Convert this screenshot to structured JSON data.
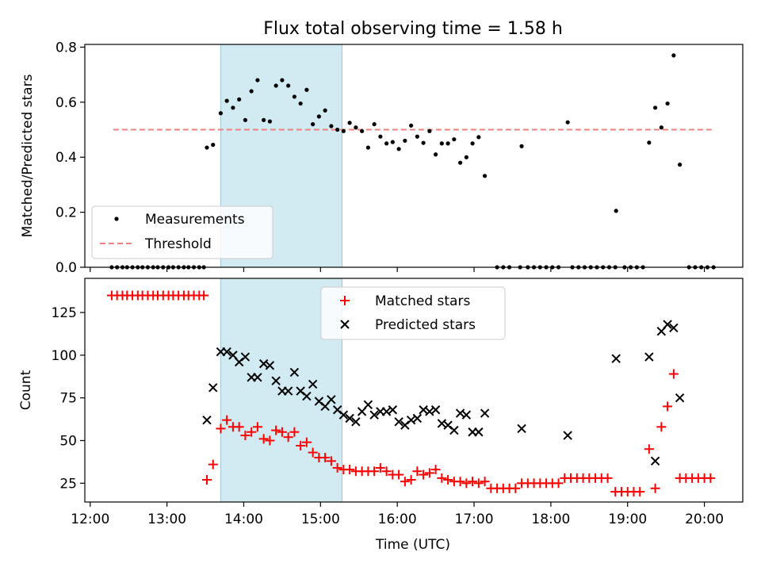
{
  "figure": {
    "title": "Flux total observing time = 1.58 h",
    "xlabel": "Time (UTC)",
    "x_tick_labels": [
      "12:00",
      "13:00",
      "14:00",
      "15:00",
      "16:00",
      "17:00",
      "18:00",
      "19:00",
      "20:00"
    ],
    "x_tick_values": [
      12.0,
      13.0,
      14.0,
      15.0,
      16.0,
      17.0,
      18.0,
      19.0,
      20.0
    ],
    "xlim": [
      11.93,
      20.5
    ],
    "shaded_span": [
      13.7,
      15.28
    ],
    "colors": {
      "span": "#add8e6",
      "span_edge": "#9cc8d6",
      "measurement": "#000000",
      "threshold": "#f08080",
      "matched": "#ff0000",
      "predicted": "#000000"
    }
  },
  "chart_data": [
    {
      "type": "scatter",
      "ylabel": "Matched/Predicted stars",
      "ylim": [
        0,
        0.81
      ],
      "y_ticks": [
        0.0,
        0.2,
        0.4,
        0.6,
        0.8
      ],
      "y_tick_labels": [
        "0.0",
        "0.2",
        "0.4",
        "0.6",
        "0.8"
      ],
      "legend_placement": "lower-left",
      "threshold": {
        "name": "Threshold",
        "value": 0.5,
        "x_range": [
          12.3,
          20.1
        ]
      },
      "series": [
        {
          "name": "Measurements",
          "marker": "dot",
          "points": [
            [
              12.28,
              0
            ],
            [
              12.35,
              0
            ],
            [
              12.42,
              0
            ],
            [
              12.48,
              0
            ],
            [
              12.55,
              0
            ],
            [
              12.62,
              0
            ],
            [
              12.68,
              0
            ],
            [
              12.75,
              0
            ],
            [
              12.82,
              0
            ],
            [
              12.88,
              0
            ],
            [
              12.95,
              0
            ],
            [
              13.02,
              0
            ],
            [
              13.08,
              0
            ],
            [
              13.15,
              0
            ],
            [
              13.22,
              0
            ],
            [
              13.28,
              0
            ],
            [
              13.35,
              0
            ],
            [
              13.42,
              0
            ],
            [
              13.48,
              0
            ],
            [
              13.52,
              0.435
            ],
            [
              13.6,
              0.445
            ],
            [
              13.7,
              0.56
            ],
            [
              13.78,
              0.605
            ],
            [
              13.86,
              0.58
            ],
            [
              13.94,
              0.61
            ],
            [
              14.02,
              0.535
            ],
            [
              14.1,
              0.64
            ],
            [
              14.18,
              0.68
            ],
            [
              14.26,
              0.535
            ],
            [
              14.34,
              0.53
            ],
            [
              14.42,
              0.66
            ],
            [
              14.5,
              0.68
            ],
            [
              14.58,
              0.66
            ],
            [
              14.66,
              0.62
            ],
            [
              14.74,
              0.595
            ],
            [
              14.82,
              0.645
            ],
            [
              14.9,
              0.52
            ],
            [
              14.98,
              0.548
            ],
            [
              15.06,
              0.57
            ],
            [
              15.14,
              0.513
            ],
            [
              15.22,
              0.5
            ],
            [
              15.3,
              0.495
            ],
            [
              15.38,
              0.525
            ],
            [
              15.46,
              0.508
            ],
            [
              15.54,
              0.495
            ],
            [
              15.62,
              0.435
            ],
            [
              15.7,
              0.52
            ],
            [
              15.78,
              0.475
            ],
            [
              15.86,
              0.45
            ],
            [
              15.94,
              0.455
            ],
            [
              16.02,
              0.43
            ],
            [
              16.1,
              0.46
            ],
            [
              16.18,
              0.515
            ],
            [
              16.26,
              0.475
            ],
            [
              16.34,
              0.452
            ],
            [
              16.42,
              0.495
            ],
            [
              16.5,
              0.41
            ],
            [
              16.58,
              0.45
            ],
            [
              16.66,
              0.45
            ],
            [
              16.74,
              0.465
            ],
            [
              16.82,
              0.38
            ],
            [
              16.9,
              0.4
            ],
            [
              16.98,
              0.45
            ],
            [
              17.06,
              0.473
            ],
            [
              17.14,
              0.332
            ],
            [
              17.62,
              0.44
            ],
            [
              18.22,
              0.527
            ],
            [
              18.85,
              0.205
            ],
            [
              19.28,
              0.453
            ],
            [
              19.36,
              0.58
            ],
            [
              19.44,
              0.508
            ],
            [
              19.52,
              0.595
            ],
            [
              19.6,
              0.77
            ],
            [
              19.68,
              0.373
            ],
            [
              17.3,
              0
            ],
            [
              17.38,
              0
            ],
            [
              17.46,
              0
            ],
            [
              17.6,
              0
            ],
            [
              17.7,
              0
            ],
            [
              17.78,
              0
            ],
            [
              17.86,
              0
            ],
            [
              17.94,
              0
            ],
            [
              18.02,
              0
            ],
            [
              18.1,
              0
            ],
            [
              18.28,
              0
            ],
            [
              18.36,
              0
            ],
            [
              18.44,
              0
            ],
            [
              18.52,
              0
            ],
            [
              18.6,
              0
            ],
            [
              18.68,
              0
            ],
            [
              18.76,
              0
            ],
            [
              18.84,
              0
            ],
            [
              18.96,
              0
            ],
            [
              19.04,
              0
            ],
            [
              19.12,
              0
            ],
            [
              19.2,
              0
            ],
            [
              19.8,
              0
            ],
            [
              19.88,
              0
            ],
            [
              19.96,
              0
            ],
            [
              20.04,
              0
            ],
            [
              20.12,
              0
            ]
          ]
        }
      ]
    },
    {
      "type": "scatter",
      "ylabel": "Count",
      "ylim": [
        14,
        145
      ],
      "y_ticks": [
        25,
        50,
        75,
        100,
        125
      ],
      "y_tick_labels": [
        "25",
        "50",
        "75",
        "100",
        "125"
      ],
      "legend_placement": "upper-center",
      "series": [
        {
          "name": "Matched stars",
          "marker": "plus",
          "points": [
            [
              12.28,
              135
            ],
            [
              12.35,
              135
            ],
            [
              12.42,
              135
            ],
            [
              12.48,
              135
            ],
            [
              12.55,
              135
            ],
            [
              12.62,
              135
            ],
            [
              12.68,
              135
            ],
            [
              12.75,
              135
            ],
            [
              12.82,
              135
            ],
            [
              12.88,
              135
            ],
            [
              12.95,
              135
            ],
            [
              13.02,
              135
            ],
            [
              13.08,
              135
            ],
            [
              13.15,
              135
            ],
            [
              13.22,
              135
            ],
            [
              13.28,
              135
            ],
            [
              13.35,
              135
            ],
            [
              13.42,
              135
            ],
            [
              13.48,
              135
            ],
            [
              13.52,
              27
            ],
            [
              13.6,
              36
            ],
            [
              13.7,
              57
            ],
            [
              13.78,
              62
            ],
            [
              13.86,
              58
            ],
            [
              13.94,
              58
            ],
            [
              14.02,
              53
            ],
            [
              14.1,
              55
            ],
            [
              14.18,
              58
            ],
            [
              14.26,
              51
            ],
            [
              14.34,
              50
            ],
            [
              14.42,
              56
            ],
            [
              14.5,
              55
            ],
            [
              14.58,
              52
            ],
            [
              14.66,
              55
            ],
            [
              14.74,
              47
            ],
            [
              14.82,
              49
            ],
            [
              14.9,
              43
            ],
            [
              14.98,
              40
            ],
            [
              15.06,
              40
            ],
            [
              15.14,
              38
            ],
            [
              15.22,
              34
            ],
            [
              15.3,
              33
            ],
            [
              15.38,
              33
            ],
            [
              15.46,
              32
            ],
            [
              15.54,
              32
            ],
            [
              15.62,
              32
            ],
            [
              15.7,
              32
            ],
            [
              15.78,
              34
            ],
            [
              15.86,
              32
            ],
            [
              15.94,
              30
            ],
            [
              16.02,
              30
            ],
            [
              16.1,
              26
            ],
            [
              16.18,
              27
            ],
            [
              16.26,
              32
            ],
            [
              16.34,
              30
            ],
            [
              16.42,
              31
            ],
            [
              16.5,
              33
            ],
            [
              16.58,
              28
            ],
            [
              16.66,
              27
            ],
            [
              16.74,
              26
            ],
            [
              16.82,
              26
            ],
            [
              16.9,
              25
            ],
            [
              16.98,
              26
            ],
            [
              17.06,
              25
            ],
            [
              17.14,
              26
            ],
            [
              17.22,
              22
            ],
            [
              17.3,
              22
            ],
            [
              17.38,
              22
            ],
            [
              17.46,
              22
            ],
            [
              17.54,
              22
            ],
            [
              17.62,
              25
            ],
            [
              17.7,
              25
            ],
            [
              17.78,
              25
            ],
            [
              17.86,
              25
            ],
            [
              17.94,
              25
            ],
            [
              18.02,
              25
            ],
            [
              18.1,
              25
            ],
            [
              18.18,
              28
            ],
            [
              18.26,
              28
            ],
            [
              18.34,
              28
            ],
            [
              18.42,
              28
            ],
            [
              18.5,
              28
            ],
            [
              18.58,
              28
            ],
            [
              18.66,
              28
            ],
            [
              18.74,
              28
            ],
            [
              18.84,
              20
            ],
            [
              18.92,
              20
            ],
            [
              19.0,
              20
            ],
            [
              19.08,
              20
            ],
            [
              19.16,
              20
            ],
            [
              19.28,
              45
            ],
            [
              19.36,
              22
            ],
            [
              19.44,
              58
            ],
            [
              19.52,
              70
            ],
            [
              19.6,
              89
            ],
            [
              19.68,
              28
            ],
            [
              19.76,
              28
            ],
            [
              19.84,
              28
            ],
            [
              19.92,
              28
            ],
            [
              20.0,
              28
            ],
            [
              20.08,
              28
            ]
          ]
        },
        {
          "name": "Predicted stars",
          "marker": "x",
          "points": [
            [
              13.52,
              62
            ],
            [
              13.6,
              81
            ],
            [
              13.7,
              102
            ],
            [
              13.78,
              102
            ],
            [
              13.86,
              100
            ],
            [
              13.94,
              96
            ],
            [
              14.02,
              99
            ],
            [
              14.1,
              87
            ],
            [
              14.18,
              87
            ],
            [
              14.26,
              95
            ],
            [
              14.34,
              94
            ],
            [
              14.42,
              85
            ],
            [
              14.5,
              79
            ],
            [
              14.58,
              79
            ],
            [
              14.66,
              90
            ],
            [
              14.74,
              79
            ],
            [
              14.82,
              76
            ],
            [
              14.9,
              83
            ],
            [
              14.98,
              73
            ],
            [
              15.06,
              70
            ],
            [
              15.14,
              74
            ],
            [
              15.22,
              68
            ],
            [
              15.3,
              65
            ],
            [
              15.38,
              63
            ],
            [
              15.46,
              61
            ],
            [
              15.54,
              67
            ],
            [
              15.62,
              71
            ],
            [
              15.7,
              65
            ],
            [
              15.78,
              67
            ],
            [
              15.86,
              67
            ],
            [
              15.94,
              68
            ],
            [
              16.02,
              61
            ],
            [
              16.1,
              59
            ],
            [
              16.18,
              62
            ],
            [
              16.26,
              63
            ],
            [
              16.34,
              68
            ],
            [
              16.42,
              67
            ],
            [
              16.5,
              68
            ],
            [
              16.58,
              60
            ],
            [
              16.66,
              59
            ],
            [
              16.74,
              56
            ],
            [
              16.82,
              66
            ],
            [
              16.9,
              65
            ],
            [
              16.98,
              55
            ],
            [
              17.06,
              55
            ],
            [
              17.14,
              66
            ],
            [
              17.62,
              57
            ],
            [
              18.22,
              53
            ],
            [
              18.85,
              98
            ],
            [
              19.28,
              99
            ],
            [
              19.36,
              38
            ],
            [
              19.44,
              114
            ],
            [
              19.52,
              118
            ],
            [
              19.6,
              116
            ],
            [
              19.68,
              75
            ]
          ]
        }
      ]
    }
  ]
}
